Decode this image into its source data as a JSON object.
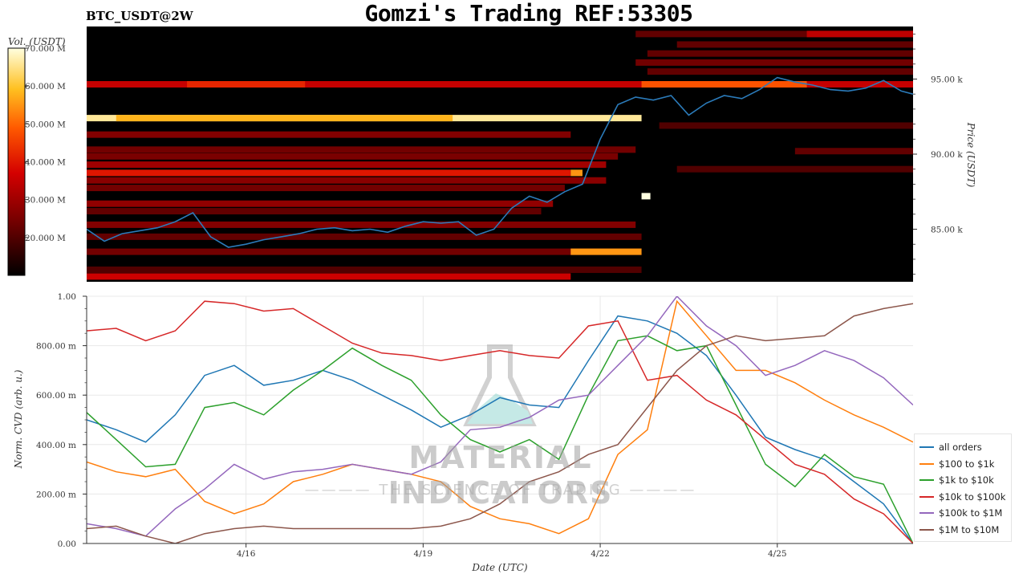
{
  "title": "Gomzi's Trading REF:53305",
  "symbol": "BTC_USDT@2W",
  "watermark": {
    "main": "MATERIAL INDICATORS",
    "sub": "THE SCIENCE OF TRADING"
  },
  "colors": {
    "heatmap_bg": "#000000",
    "price_line": "#2b7bba",
    "all_orders": "#1f77b4",
    "s100_1k": "#ff7f0e",
    "s1k_10k": "#2ca02c",
    "s10k_100k": "#d62728",
    "s100k_1m": "#9467bd",
    "s1m_10m": "#8c564b"
  },
  "chart_data": [
    {
      "type": "heatmap",
      "title": "BTC_USDT@2W",
      "colorbar": {
        "label": "Vol. (USDT)",
        "ticks": [
          "70.000 M",
          "60.000 M",
          "50.000 M",
          "40.000 M",
          "30.000 M",
          "20.000 M"
        ],
        "values": [
          70,
          60,
          50,
          40,
          30,
          20
        ],
        "range": [
          10,
          70
        ]
      },
      "ylabel": "Price (USDT)",
      "ylim": [
        81500,
        98500
      ],
      "yticks": [
        "95.00 k",
        "90.00 k",
        "85.00 k"
      ],
      "ytick_values": [
        95000,
        90000,
        85000
      ],
      "xlim": [
        0,
        14
      ],
      "price_series": {
        "name": "price",
        "x": [
          0,
          0.3,
          0.6,
          0.9,
          1.2,
          1.5,
          1.8,
          2.1,
          2.4,
          2.7,
          3.0,
          3.3,
          3.6,
          3.9,
          4.2,
          4.5,
          4.8,
          5.1,
          5.4,
          5.7,
          6.0,
          6.3,
          6.6,
          6.9,
          7.2,
          7.5,
          7.8,
          8.1,
          8.4,
          8.7,
          9.0,
          9.3,
          9.6,
          9.9,
          10.2,
          10.5,
          10.8,
          11.1,
          11.4,
          11.7,
          12.0,
          12.3,
          12.6,
          12.9,
          13.2,
          13.5,
          13.8,
          14.0
        ],
        "y": [
          85000,
          84200,
          84700,
          84900,
          85100,
          85500,
          86100,
          84500,
          83800,
          84000,
          84300,
          84500,
          84700,
          85000,
          85100,
          84900,
          85000,
          84800,
          85200,
          85500,
          85400,
          85500,
          84600,
          85000,
          86400,
          87200,
          86800,
          87500,
          88000,
          91000,
          93300,
          93800,
          93600,
          93900,
          92600,
          93400,
          93900,
          93700,
          94300,
          95100,
          94800,
          94600,
          94300,
          94200,
          94400,
          94900,
          94200,
          94000
        ]
      },
      "bands": [
        {
          "price": 94650,
          "x0": 0.0,
          "x1": 14.0,
          "vol": 35
        },
        {
          "price": 94650,
          "x0": 1.7,
          "x1": 3.7,
          "vol": 42
        },
        {
          "price": 94650,
          "x0": 9.4,
          "x1": 12.2,
          "vol": 48
        },
        {
          "price": 92400,
          "x0": 0.0,
          "x1": 9.4,
          "vol": 66
        },
        {
          "price": 92400,
          "x0": 0.5,
          "x1": 6.2,
          "vol": 58
        },
        {
          "price": 91300,
          "x0": 0.0,
          "x1": 8.2,
          "vol": 26
        },
        {
          "price": 90300,
          "x0": 0.0,
          "x1": 9.3,
          "vol": 24
        },
        {
          "price": 89850,
          "x0": 0.0,
          "x1": 9.0,
          "vol": 25
        },
        {
          "price": 89300,
          "x0": 0.0,
          "x1": 8.8,
          "vol": 30
        },
        {
          "price": 88750,
          "x0": 0.0,
          "x1": 8.2,
          "vol": 40
        },
        {
          "price": 88750,
          "x0": 8.2,
          "x1": 8.4,
          "vol": 55
        },
        {
          "price": 88250,
          "x0": 0.0,
          "x1": 8.8,
          "vol": 27
        },
        {
          "price": 87750,
          "x0": 0.0,
          "x1": 8.1,
          "vol": 24
        },
        {
          "price": 87200,
          "x0": 9.4,
          "x1": 9.55,
          "vol": 70
        },
        {
          "price": 86700,
          "x0": 0.0,
          "x1": 7.9,
          "vol": 28
        },
        {
          "price": 86200,
          "x0": 0.0,
          "x1": 7.7,
          "vol": 22
        },
        {
          "price": 85300,
          "x0": 0.0,
          "x1": 9.3,
          "vol": 26
        },
        {
          "price": 84500,
          "x0": 0.0,
          "x1": 9.4,
          "vol": 22
        },
        {
          "price": 83500,
          "x0": 0.0,
          "x1": 9.4,
          "vol": 24
        },
        {
          "price": 83500,
          "x0": 8.2,
          "x1": 9.4,
          "vol": 55
        },
        {
          "price": 82300,
          "x0": 0.0,
          "x1": 9.4,
          "vol": 20
        },
        {
          "price": 81850,
          "x0": 0.0,
          "x1": 8.2,
          "vol": 36
        },
        {
          "price": 98000,
          "x0": 9.3,
          "x1": 14.0,
          "vol": 22
        },
        {
          "price": 98000,
          "x0": 12.2,
          "x1": 14.0,
          "vol": 34
        },
        {
          "price": 97300,
          "x0": 10.0,
          "x1": 14.0,
          "vol": 22
        },
        {
          "price": 96700,
          "x0": 9.5,
          "x1": 14.0,
          "vol": 22
        },
        {
          "price": 96100,
          "x0": 9.3,
          "x1": 14.0,
          "vol": 24
        },
        {
          "price": 95500,
          "x0": 9.5,
          "x1": 14.0,
          "vol": 22
        },
        {
          "price": 91900,
          "x0": 9.7,
          "x1": 14.0,
          "vol": 20
        },
        {
          "price": 90200,
          "x0": 12.0,
          "x1": 14.0,
          "vol": 22
        },
        {
          "price": 89000,
          "x0": 10.0,
          "x1": 14.0,
          "vol": 20
        }
      ]
    },
    {
      "type": "line",
      "xlabel": "Date (UTC)",
      "ylabel": "Norm. CVD (arb. u.)",
      "ylim": [
        0,
        1.0
      ],
      "xlim": [
        0,
        14
      ],
      "yticks": [
        "0.00",
        "200.00 m",
        "400.00 m",
        "600.00 m",
        "800.00 m",
        "1.00"
      ],
      "ytick_values": [
        0,
        0.2,
        0.4,
        0.6,
        0.8,
        1.0
      ],
      "xticks": [
        "4/16",
        "4/19",
        "4/22",
        "4/25"
      ],
      "xtick_values": [
        2.7,
        5.7,
        8.7,
        11.7
      ],
      "grid": true,
      "legend_position": "lower-right",
      "x": [
        0,
        0.5,
        1.0,
        1.5,
        2.0,
        2.5,
        3.0,
        3.5,
        4.0,
        4.5,
        5.0,
        5.5,
        6.0,
        6.5,
        7.0,
        7.5,
        8.0,
        8.5,
        9.0,
        9.5,
        10.0,
        10.5,
        11.0,
        11.5,
        12.0,
        12.5,
        13.0,
        13.5,
        14.0
      ],
      "series": [
        {
          "name": "all orders",
          "values": [
            0.5,
            0.46,
            0.41,
            0.52,
            0.68,
            0.72,
            0.64,
            0.66,
            0.7,
            0.66,
            0.6,
            0.54,
            0.47,
            0.52,
            0.59,
            0.56,
            0.55,
            0.74,
            0.92,
            0.9,
            0.85,
            0.76,
            0.6,
            0.43,
            0.38,
            0.34,
            0.25,
            0.16,
            0.0
          ]
        },
        {
          "name": "$100 to $1k",
          "values": [
            0.33,
            0.29,
            0.27,
            0.3,
            0.17,
            0.12,
            0.16,
            0.25,
            0.28,
            0.32,
            0.3,
            0.28,
            0.25,
            0.15,
            0.1,
            0.08,
            0.04,
            0.1,
            0.36,
            0.46,
            0.98,
            0.84,
            0.7,
            0.7,
            0.65,
            0.58,
            0.52,
            0.47,
            0.41
          ]
        },
        {
          "name": "$1k to $10k",
          "values": [
            0.53,
            0.42,
            0.31,
            0.32,
            0.55,
            0.57,
            0.52,
            0.62,
            0.7,
            0.79,
            0.72,
            0.66,
            0.52,
            0.42,
            0.37,
            0.42,
            0.34,
            0.6,
            0.82,
            0.84,
            0.78,
            0.8,
            0.56,
            0.32,
            0.23,
            0.36,
            0.27,
            0.24,
            0.0
          ]
        },
        {
          "name": "$10k to $100k",
          "values": [
            0.86,
            0.87,
            0.82,
            0.86,
            0.98,
            0.97,
            0.94,
            0.95,
            0.88,
            0.81,
            0.77,
            0.76,
            0.74,
            0.76,
            0.78,
            0.76,
            0.75,
            0.88,
            0.9,
            0.66,
            0.68,
            0.58,
            0.52,
            0.42,
            0.32,
            0.28,
            0.18,
            0.12,
            0.0
          ]
        },
        {
          "name": "$100k to $1M",
          "values": [
            0.08,
            0.06,
            0.03,
            0.14,
            0.22,
            0.32,
            0.26,
            0.29,
            0.3,
            0.32,
            0.3,
            0.28,
            0.33,
            0.46,
            0.47,
            0.51,
            0.58,
            0.6,
            0.72,
            0.84,
            1.0,
            0.88,
            0.8,
            0.68,
            0.72,
            0.78,
            0.74,
            0.67,
            0.56
          ]
        },
        {
          "name": "$1M to $10M",
          "values": [
            0.06,
            0.07,
            0.03,
            0.0,
            0.04,
            0.06,
            0.07,
            0.06,
            0.06,
            0.06,
            0.06,
            0.06,
            0.07,
            0.1,
            0.16,
            0.25,
            0.29,
            0.36,
            0.4,
            0.55,
            0.7,
            0.8,
            0.84,
            0.82,
            0.83,
            0.84,
            0.92,
            0.95,
            0.97
          ]
        }
      ]
    }
  ]
}
